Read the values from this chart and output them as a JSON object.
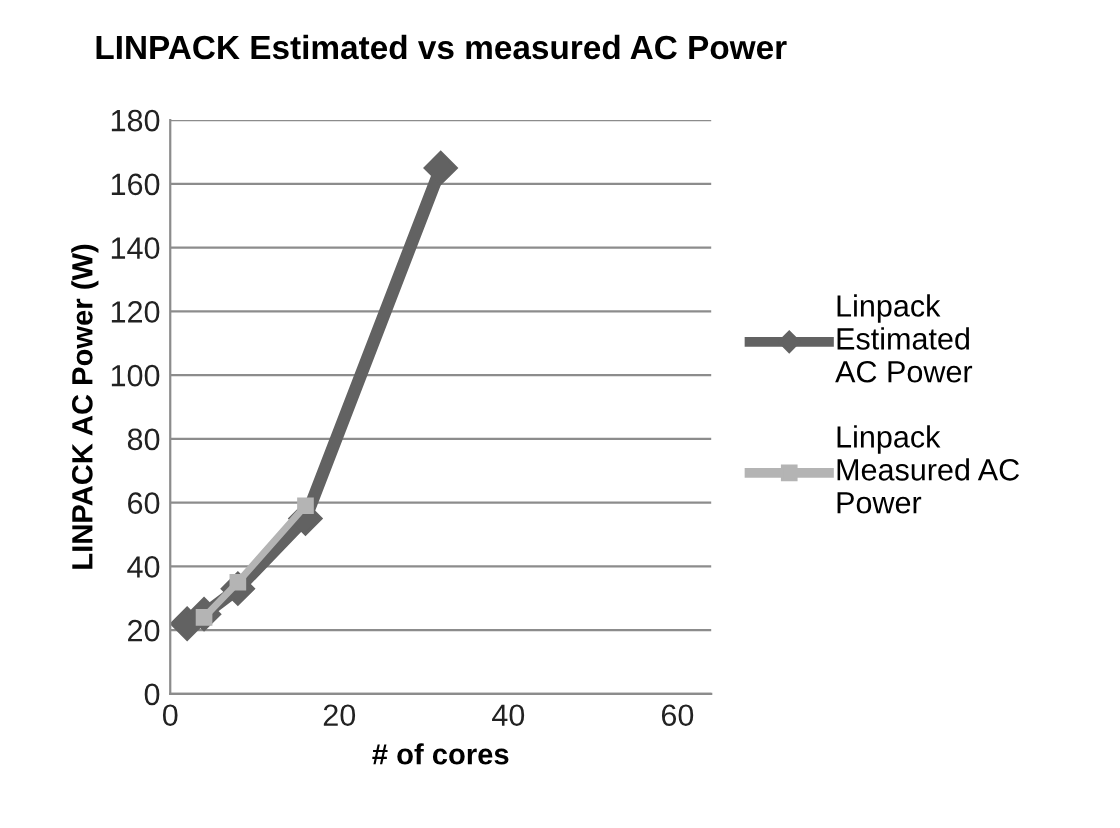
{
  "chart_data": {
    "type": "line",
    "title": "LINPACK Estimated vs measured AC Power",
    "xlabel": "# of cores",
    "ylabel": "LINPACK AC Power (W)",
    "xlim": [
      0,
      64
    ],
    "xticks": [
      0,
      20,
      40,
      60
    ],
    "ylim": [
      0,
      180
    ],
    "yticks": [
      0,
      20,
      40,
      60,
      80,
      100,
      120,
      140,
      160,
      180
    ],
    "grid": "y",
    "legend": "right",
    "series": [
      {
        "name": "Linpack Estimated AC Power",
        "color": "#626262",
        "marker": "diamond",
        "x": [
          2,
          4,
          8,
          16,
          32
        ],
        "values": [
          22,
          25,
          33,
          55,
          165
        ]
      },
      {
        "name": "Linpack Measured AC Power",
        "color": "#b4b4b4",
        "marker": "square",
        "x": [
          4,
          8,
          16
        ],
        "values": [
          24,
          35,
          59
        ]
      }
    ]
  }
}
